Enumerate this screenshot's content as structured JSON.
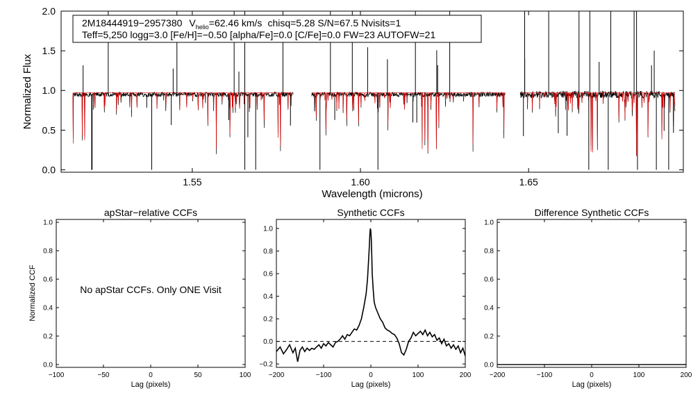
{
  "chart_data": [
    {
      "type": "line",
      "title": "",
      "xlabel": "Wavelength (microns)",
      "ylabel": "Normalized Flux",
      "xlim": [
        1.511,
        1.696
      ],
      "ylim": [
        -0.03,
        2.0
      ],
      "xticks": [
        1.55,
        1.6,
        1.65
      ],
      "xtick_labels": [
        "1.55",
        "1.60",
        "1.65"
      ],
      "yticks": [
        0.0,
        0.5,
        1.0,
        1.5,
        2.0
      ],
      "ytick_labels": [
        "0.0",
        "0.5",
        "1.0",
        "1.5",
        "2.0"
      ],
      "annotation": {
        "star_id": "2M18444919−2957380",
        "v_prefix": "V",
        "v_sub": "helio",
        "v_value": "=62.46 km/s",
        "rest_line1": "chisq=5.28  S/N=67.5  Nvisits=1",
        "line2": "Teff=5,250 logg=3.0 [Fe/H]=−0.50 [alpha/Fe]=0.0 [C/Fe]=0.0 FW=23 AUTOFW=21"
      },
      "series": [
        {
          "name": "observed spectrum",
          "color": "#000000",
          "continuum": 0.95,
          "chips": [
            [
              1.5145,
              1.58
            ],
            [
              1.5855,
              1.643
            ],
            [
              1.6475,
              1.6935
            ]
          ]
        },
        {
          "name": "synthetic model",
          "color": "#dd0000",
          "continuum": 0.97
        }
      ]
    },
    {
      "type": "line",
      "title": "apStar−relative CCFs",
      "xlabel": "Lag (pixels)",
      "ylabel": "Normalized CCF",
      "xlim": [
        -100,
        100
      ],
      "ylim": [
        -0.02,
        1.02
      ],
      "xticks": [
        -100,
        -50,
        0,
        50,
        100
      ],
      "xtick_labels": [
        "−100",
        "−50",
        "0",
        "50",
        "100"
      ],
      "yticks": [
        0.0,
        0.2,
        0.4,
        0.6,
        0.8,
        1.0
      ],
      "ytick_labels": [
        "0.0",
        "0.2",
        "0.4",
        "0.6",
        "0.8",
        "1.0"
      ],
      "message": "No apStar CCFs.  Only ONE Visit",
      "series": []
    },
    {
      "type": "line",
      "title": "Synthetic CCFs",
      "xlabel": "Lag (pixels)",
      "ylabel": "",
      "xlim": [
        -200,
        200
      ],
      "ylim": [
        -0.23,
        1.08
      ],
      "xticks": [
        -200,
        -100,
        0,
        100,
        200
      ],
      "xtick_labels": [
        "−200",
        "−100",
        "0",
        "100",
        "200"
      ],
      "yticks": [
        -0.2,
        0.0,
        0.2,
        0.4,
        0.6,
        0.8,
        1.0
      ],
      "ytick_labels": [
        "−0.2",
        "0.0",
        "0.2",
        "0.4",
        "0.6",
        "0.8",
        "1.0"
      ],
      "zero_line": 0.0,
      "series": [
        {
          "name": "synthetic CCF",
          "color": "#000000",
          "x": [
            -200,
            -192,
            -185,
            -178,
            -172,
            -165,
            -160,
            -155,
            -150,
            -145,
            -140,
            -135,
            -130,
            -125,
            -120,
            -115,
            -110,
            -105,
            -100,
            -95,
            -90,
            -85,
            -80,
            -75,
            -70,
            -65,
            -60,
            -55,
            -50,
            -45,
            -40,
            -35,
            -30,
            -25,
            -20,
            -15,
            -10,
            -7,
            -5,
            -3,
            -2,
            -1,
            0,
            1,
            2,
            3,
            5,
            7,
            10,
            15,
            20,
            25,
            30,
            35,
            40,
            45,
            50,
            55,
            60,
            65,
            70,
            75,
            80,
            85,
            90,
            95,
            100,
            105,
            110,
            115,
            120,
            125,
            130,
            135,
            140,
            145,
            150,
            155,
            160,
            165,
            170,
            175,
            180,
            185,
            190,
            195,
            200
          ],
          "y": [
            -0.09,
            -0.05,
            -0.11,
            -0.07,
            -0.03,
            -0.1,
            -0.06,
            -0.18,
            -0.08,
            -0.05,
            -0.09,
            -0.06,
            -0.08,
            -0.06,
            -0.07,
            -0.05,
            -0.03,
            -0.06,
            -0.02,
            -0.04,
            -0.01,
            -0.03,
            -0.05,
            -0.01,
            0.0,
            0.02,
            0.05,
            0.02,
            0.06,
            0.05,
            0.08,
            0.11,
            0.1,
            0.14,
            0.2,
            0.3,
            0.42,
            0.55,
            0.7,
            0.86,
            0.95,
            1.0,
            0.98,
            0.9,
            0.75,
            0.6,
            0.46,
            0.35,
            0.3,
            0.25,
            0.2,
            0.17,
            0.12,
            0.1,
            0.09,
            0.07,
            0.06,
            0.03,
            -0.02,
            -0.1,
            -0.12,
            -0.07,
            0.0,
            0.03,
            0.08,
            0.05,
            0.07,
            0.09,
            0.06,
            0.1,
            0.05,
            0.08,
            0.04,
            0.06,
            0.01,
            0.03,
            -0.02,
            0.02,
            -0.04,
            -0.02,
            -0.06,
            -0.03,
            -0.07,
            -0.04,
            -0.1,
            -0.06,
            -0.13
          ]
        }
      ]
    },
    {
      "type": "line",
      "title": "Difference Synthetic CCFs",
      "xlabel": "Lag (pixels)",
      "ylabel": "",
      "xlim": [
        -200,
        200
      ],
      "ylim": [
        -0.02,
        1.02
      ],
      "xticks": [
        -200,
        -100,
        0,
        100,
        200
      ],
      "xtick_labels": [
        "−200",
        "−100",
        "0",
        "100",
        "200"
      ],
      "yticks": [
        0.0,
        0.2,
        0.4,
        0.6,
        0.8,
        1.0
      ],
      "ytick_labels": [
        "0.0",
        "0.2",
        "0.4",
        "0.6",
        "0.8",
        "1.0"
      ],
      "series": [
        {
          "name": "difference CCF",
          "color": "#000000",
          "x": [
            -200,
            200
          ],
          "y": [
            0.0,
            0.0
          ]
        }
      ]
    }
  ]
}
